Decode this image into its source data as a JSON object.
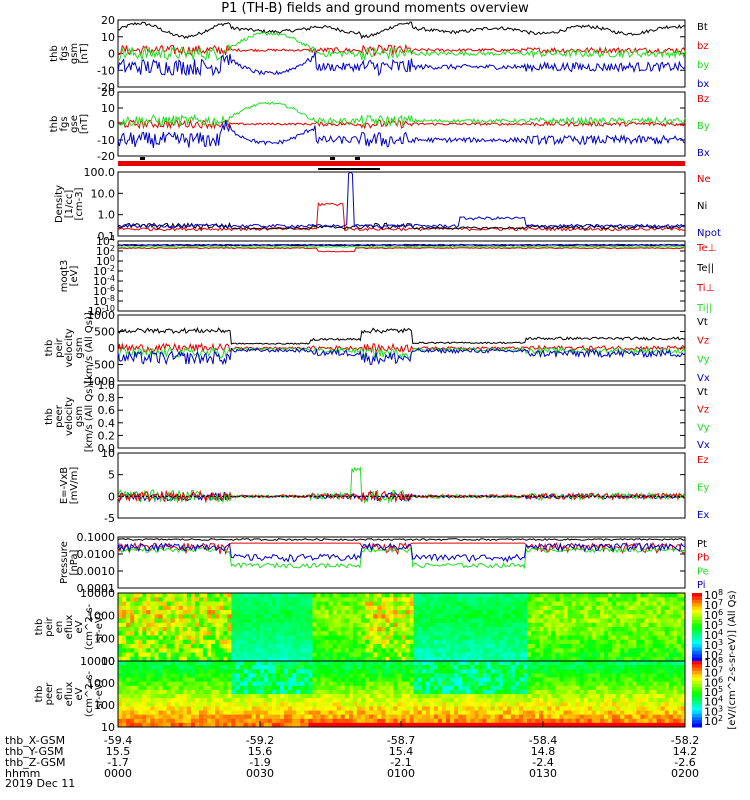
{
  "title": "P1 (TH-B) fields and ground moments overview",
  "colors": {
    "black": "#000000",
    "red": "#e60000",
    "green": "#22dd22",
    "blue": "#0000cc"
  },
  "chart_data": [
    {
      "id": "fgs",
      "type": "line",
      "ylabel": [
        "thb",
        "fgs",
        "gsm",
        "[nT]"
      ],
      "ylim": [
        -20,
        20
      ],
      "yticks": [
        "20",
        "10",
        "0",
        "-10",
        "-20"
      ],
      "legend": [
        {
          "name": "Bt",
          "color": "black"
        },
        {
          "name": "bz",
          "color": "red"
        },
        {
          "name": "by",
          "color": "green"
        },
        {
          "name": "bx",
          "color": "blue"
        }
      ]
    },
    {
      "id": "fgs_gse",
      "type": "line",
      "ylabel": [
        "thb",
        "fgs",
        "gse",
        "[nT]"
      ],
      "ylim": [
        -20,
        20
      ],
      "yticks": [
        "20",
        "10",
        "0",
        "-10",
        "-20"
      ],
      "legend": [
        {
          "name": "Bz",
          "color": "red"
        },
        {
          "name": "By",
          "color": "green"
        },
        {
          "name": "Bx",
          "color": "blue"
        }
      ]
    },
    {
      "id": "density",
      "type": "line",
      "scale": "log",
      "ylabel": [
        "Density",
        "[1/cc]",
        "[cm-3]"
      ],
      "ylim": [
        0.05,
        200
      ],
      "yticks": [
        "100.0",
        "10.0",
        "1.0",
        "0.1"
      ],
      "legend": [
        {
          "name": "Ne",
          "color": "red"
        },
        {
          "name": "Ni",
          "color": "black"
        },
        {
          "name": "Npot",
          "color": "blue"
        }
      ]
    },
    {
      "id": "temp",
      "type": "line",
      "scale": "log",
      "ylabel": [
        "moqt3",
        "[eV]"
      ],
      "yticks": [
        "10^4",
        "10^2",
        "10^0",
        "10^-2",
        "10^-4",
        "10^-6",
        "10^-8",
        "10^-10"
      ],
      "legend": [
        {
          "name": "Te⊥",
          "color": "red"
        },
        {
          "name": "Te||",
          "color": "black"
        },
        {
          "name": "Ti⊥",
          "color": "red"
        },
        {
          "name": "Ti||",
          "color": "green"
        }
      ]
    },
    {
      "id": "peir_vel",
      "type": "line",
      "ylabel": [
        "thb",
        "peir",
        "velocity",
        "gsm",
        "[km/s (All Qs)]"
      ],
      "ylim": [
        -1000,
        1000
      ],
      "yticks": [
        "1000",
        "500",
        "0",
        "-500",
        "-1000"
      ],
      "legend": [
        {
          "name": "Vt",
          "color": "black"
        },
        {
          "name": "Vz",
          "color": "red"
        },
        {
          "name": "Vy",
          "color": "green"
        },
        {
          "name": "Vx",
          "color": "blue"
        }
      ]
    },
    {
      "id": "peer_vel",
      "type": "line",
      "ylabel": [
        "thb",
        "peer",
        "velocity",
        "gsm",
        "[km/s (All Qs)]"
      ],
      "ylim": [
        0,
        1
      ],
      "yticks": [
        "1.0",
        "0.8",
        "0.6",
        "0.4",
        "0.2",
        "0.0"
      ],
      "legend": [
        {
          "name": "Vt",
          "color": "black"
        },
        {
          "name": "Vz",
          "color": "red"
        },
        {
          "name": "Vy",
          "color": "green"
        },
        {
          "name": "Vx",
          "color": "blue"
        }
      ]
    },
    {
      "id": "efield",
      "type": "line",
      "ylabel": [
        "E=-VxB",
        "[mV/m]"
      ],
      "ylim": [
        -5,
        10
      ],
      "yticks": [
        "10",
        "5",
        "0",
        "-5"
      ],
      "legend": [
        {
          "name": "Ez",
          "color": "red"
        },
        {
          "name": "Ey",
          "color": "green"
        },
        {
          "name": "Ex",
          "color": "blue"
        }
      ]
    },
    {
      "id": "pressure",
      "type": "line",
      "scale": "log",
      "ylabel": [
        "Pressure",
        "[nPa]"
      ],
      "yticks": [
        "0.1000",
        "0.0100",
        "0.0010",
        "0.0001"
      ],
      "legend": [
        {
          "name": "Pt",
          "color": "black"
        },
        {
          "name": "Pb",
          "color": "red"
        },
        {
          "name": "Pe",
          "color": "green"
        },
        {
          "name": "Pi",
          "color": "blue"
        }
      ]
    },
    {
      "id": "peir_spec",
      "type": "heatmap",
      "ylabel": [
        "thb",
        "peir",
        "en",
        "eflux",
        "eV",
        "(cm^2-s-",
        "sr-eV)"
      ],
      "yticks": [
        "10000",
        "1000",
        "100",
        "10"
      ],
      "colorbar_ticks": [
        "10^8",
        "10^7",
        "10^6",
        "10^5",
        "10^4",
        "10^3",
        "10^2"
      ]
    },
    {
      "id": "peer_spec",
      "type": "heatmap",
      "ylabel": [
        "thb",
        "peer",
        "en",
        "eflux",
        "eV",
        "(cm^2-s-",
        "sr-eV)"
      ],
      "yticks": [
        "10000",
        "1000",
        "100",
        "10"
      ],
      "colorbar_ticks": [
        "10^8",
        "10^7",
        "10^6",
        "10^5",
        "10^4",
        "10^3",
        "10^2"
      ]
    }
  ],
  "colorbar_title": "[eV/(cm^2-s-sr-eV)] (All Qs)",
  "x_axis": {
    "rows": [
      {
        "label": "thb_X-GSM",
        "values": [
          "-59.4",
          "-59.2",
          "-58.7",
          "-58.4",
          "-58.2"
        ]
      },
      {
        "label": "thb_Y-GSM",
        "values": [
          "15.5",
          "15.6",
          "15.4",
          "14.8",
          "14.2"
        ]
      },
      {
        "label": "thb_Z-GSM",
        "values": [
          "-1.7",
          "-1.9",
          "-2.1",
          "-2.4",
          "-2.6"
        ]
      },
      {
        "label": "hhmm",
        "values": [
          "0000",
          "0030",
          "0100",
          "0130",
          "0200"
        ]
      }
    ],
    "date": "2019 Dec 11"
  }
}
